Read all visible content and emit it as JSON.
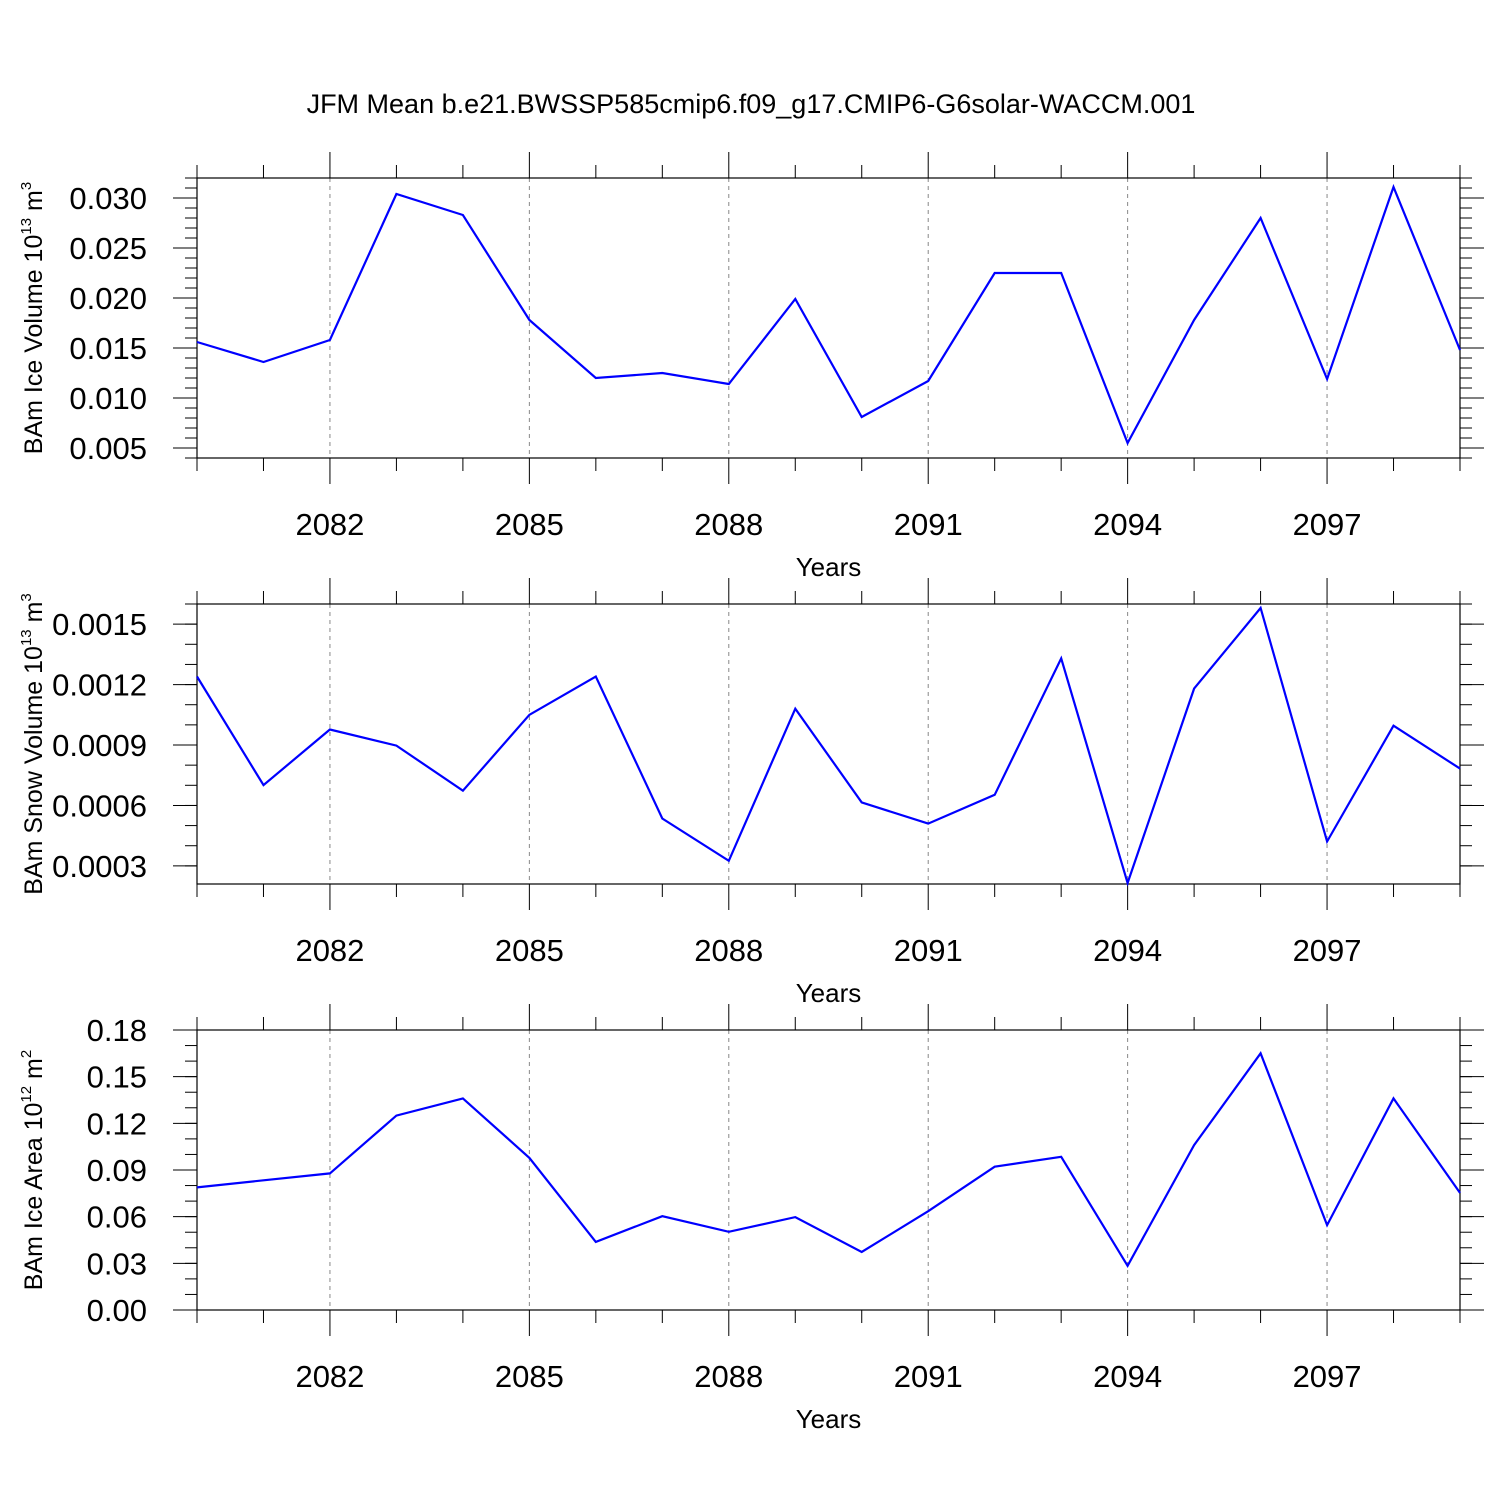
{
  "title": "JFM Mean b.e21.BWSSP585cmip6.f09_g17.CMIP6-G6solar-WACCM.001",
  "line_color": "#0000ff",
  "chart_data": [
    {
      "type": "line",
      "ylabel": "BAm Ice Volume 10",
      "ylabel_sup": "13",
      "ylabel_unit": " m",
      "ylabel_unit_sup": "3",
      "xlabel": "Years",
      "xlim": [
        2080,
        2099
      ],
      "ylim": [
        0.004,
        0.032
      ],
      "x_ticks": [
        2082,
        2085,
        2088,
        2091,
        2094,
        2097
      ],
      "y_ticks": [
        0.005,
        0.01,
        0.015,
        0.02,
        0.025,
        0.03
      ],
      "y_tick_labels": [
        "0.005",
        "0.010",
        "0.015",
        "0.020",
        "0.025",
        "0.030"
      ],
      "y_minor_step": 0.001,
      "x": [
        2080,
        2081,
        2082,
        2083,
        2084,
        2085,
        2086,
        2087,
        2088,
        2089,
        2090,
        2091,
        2092,
        2093,
        2094,
        2095,
        2096,
        2097,
        2098,
        2099
      ],
      "values": [
        0.0156,
        0.0136,
        0.0158,
        0.0304,
        0.0283,
        0.0178,
        0.012,
        0.0125,
        0.0114,
        0.0199,
        0.0081,
        0.0117,
        0.0225,
        0.0225,
        0.0055,
        0.0178,
        0.028,
        0.0119,
        0.0311,
        0.0148
      ]
    },
    {
      "type": "line",
      "ylabel": "BAm Snow Volume 10",
      "ylabel_sup": "13",
      "ylabel_unit": " m",
      "ylabel_unit_sup": "3",
      "xlabel": "Years",
      "xlim": [
        2080,
        2099
      ],
      "ylim": [
        0.00021,
        0.0016
      ],
      "x_ticks": [
        2082,
        2085,
        2088,
        2091,
        2094,
        2097
      ],
      "y_ticks": [
        0.0003,
        0.0006,
        0.0009,
        0.0012,
        0.0015
      ],
      "y_tick_labels": [
        "0.0003",
        "0.0006",
        "0.0009",
        "0.0012",
        "0.0015"
      ],
      "y_minor_step": 0.0001,
      "x": [
        2080,
        2081,
        2082,
        2083,
        2084,
        2085,
        2086,
        2087,
        2088,
        2089,
        2090,
        2091,
        2092,
        2093,
        2094,
        2095,
        2096,
        2097,
        2098,
        2099
      ],
      "values": [
        0.00124,
        0.000701,
        0.000977,
        0.000897,
        0.000673,
        0.00105,
        0.00124,
        0.000535,
        0.000325,
        0.00108,
        0.000615,
        0.00051,
        0.000653,
        0.00133,
        0.000215,
        0.00118,
        0.00158,
        0.000421,
        0.000996,
        0.000783
      ]
    },
    {
      "type": "line",
      "ylabel": "BAm Ice Area 10",
      "ylabel_sup": "12",
      "ylabel_unit": " m",
      "ylabel_unit_sup": "2",
      "xlabel": "Years",
      "xlim": [
        2080,
        2099
      ],
      "ylim": [
        0.0,
        0.18
      ],
      "x_ticks": [
        2082,
        2085,
        2088,
        2091,
        2094,
        2097
      ],
      "y_ticks": [
        0.0,
        0.03,
        0.06,
        0.09,
        0.12,
        0.15,
        0.18
      ],
      "y_tick_labels": [
        "0.00",
        "0.03",
        "0.06",
        "0.09",
        "0.12",
        "0.15",
        "0.18"
      ],
      "y_minor_step": 0.01,
      "x": [
        2080,
        2081,
        2082,
        2083,
        2084,
        2085,
        2086,
        2087,
        2088,
        2089,
        2090,
        2091,
        2092,
        2093,
        2094,
        2095,
        2096,
        2097,
        2098,
        2099
      ],
      "values": [
        0.0788,
        0.0834,
        0.0878,
        0.125,
        0.136,
        0.0978,
        0.0438,
        0.0603,
        0.0503,
        0.0597,
        0.0373,
        0.0635,
        0.0921,
        0.0985,
        0.0284,
        0.106,
        0.165,
        0.0546,
        0.136,
        0.0753
      ]
    }
  ]
}
